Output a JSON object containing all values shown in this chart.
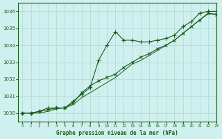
{
  "title": "Graphe pression niveau de la mer (hPa)",
  "bg_color": "#cff0ee",
  "grid_color": "#b0d8d0",
  "line_color": "#1a5c1a",
  "xlim": [
    -0.5,
    23
  ],
  "ylim": [
    1029.5,
    1036.5
  ],
  "yticks": [
    1030,
    1031,
    1032,
    1033,
    1034,
    1035,
    1036
  ],
  "xticks": [
    0,
    1,
    2,
    3,
    4,
    5,
    6,
    7,
    8,
    9,
    10,
    11,
    12,
    13,
    14,
    15,
    16,
    17,
    18,
    19,
    20,
    21,
    22,
    23
  ],
  "series1_x": [
    0,
    1,
    2,
    3,
    4,
    5,
    6,
    7,
    8,
    9,
    10,
    11,
    12,
    13,
    14,
    15,
    16,
    17,
    18,
    19,
    20,
    21,
    22,
    23
  ],
  "series1_y": [
    1030.0,
    1030.0,
    1030.1,
    1030.3,
    1030.3,
    1030.3,
    1030.7,
    1031.1,
    1031.5,
    1033.1,
    1034.0,
    1034.8,
    1034.3,
    1034.3,
    1034.2,
    1034.2,
    1034.3,
    1034.4,
    1034.6,
    1035.1,
    1035.4,
    1035.9,
    1036.0,
    1036.0
  ],
  "series2_x": [
    0,
    1,
    2,
    3,
    4,
    5,
    6,
    7,
    8,
    9,
    10,
    11,
    12,
    13,
    14,
    15,
    16,
    17,
    18,
    19,
    20,
    21,
    22,
    23
  ],
  "series2_y": [
    1030.0,
    1030.0,
    1030.1,
    1030.2,
    1030.3,
    1030.3,
    1030.6,
    1031.2,
    1031.6,
    1031.9,
    1032.1,
    1032.3,
    1032.7,
    1033.0,
    1033.3,
    1033.5,
    1033.8,
    1034.0,
    1034.3,
    1034.7,
    1035.1,
    1035.5,
    1035.9,
    1035.8
  ],
  "series3_x": [
    0,
    1,
    2,
    3,
    4,
    5,
    6,
    7,
    8,
    9,
    10,
    11,
    12,
    13,
    14,
    15,
    16,
    17,
    18,
    19,
    20,
    21,
    22,
    23
  ],
  "series3_y": [
    1030.0,
    1030.0,
    1030.0,
    1030.1,
    1030.25,
    1030.3,
    1030.5,
    1030.9,
    1031.2,
    1031.5,
    1031.8,
    1032.1,
    1032.5,
    1032.9,
    1033.1,
    1033.4,
    1033.7,
    1034.0,
    1034.3,
    1034.7,
    1035.1,
    1035.5,
    1035.85,
    1035.85
  ]
}
